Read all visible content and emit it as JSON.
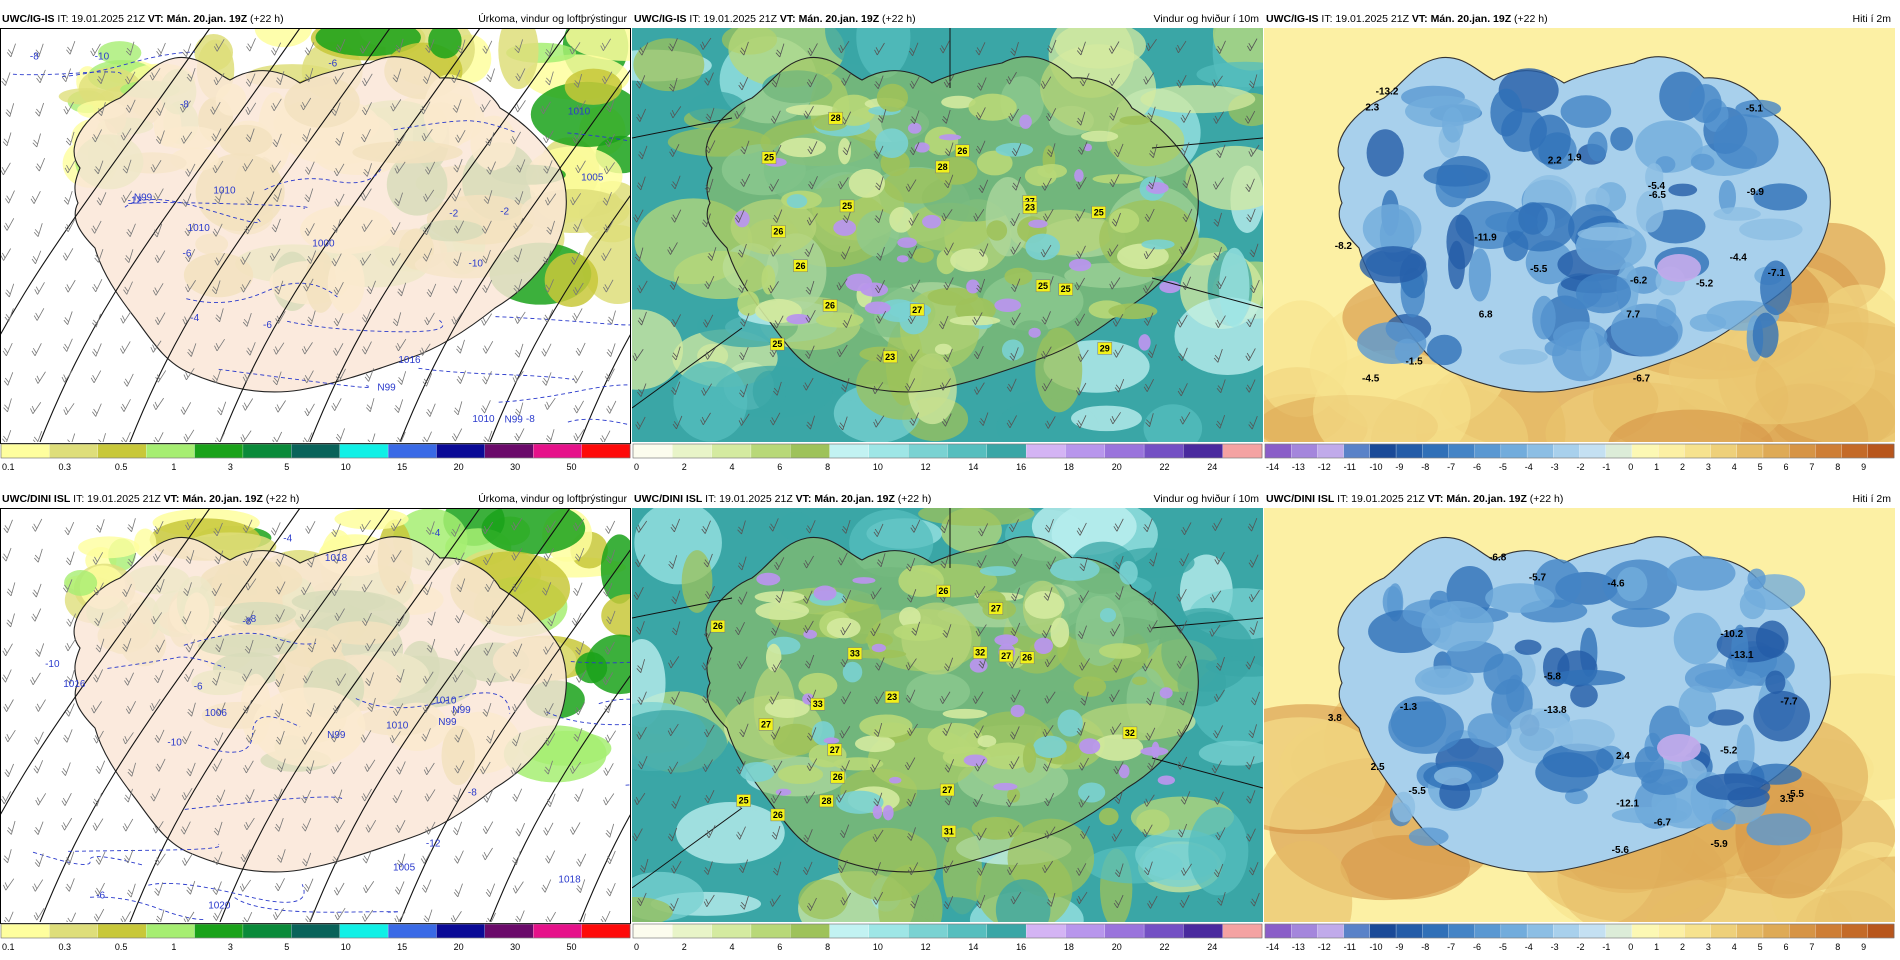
{
  "rows": [
    {
      "model": "UWC/IG-IS",
      "it_label": "IT: 19.01.2025 21Z",
      "vt_label": "VT: Mán. 20.jan. 19Z",
      "lead": "(+22 h)",
      "precip": {
        "title": "Úrkoma, vindur og loftþrýstingur",
        "contour_labels": [
          "-12",
          "-10",
          "-10",
          "-8",
          "-8",
          "-6",
          "-6",
          "-4",
          "-2",
          "-2",
          "-6",
          "-8",
          "1010",
          "1010",
          "1016",
          "1000",
          "1005",
          "1010",
          "1010",
          "N99",
          "N99",
          "N99"
        ]
      },
      "wind": {
        "title": "Vindur og hviður í 10m",
        "gusts": [
          "27",
          "26",
          "25",
          "25",
          "26",
          "28",
          "26",
          "27",
          "25",
          "23",
          "25",
          "29",
          "28",
          "25",
          "26",
          "25",
          "23"
        ]
      },
      "temp": {
        "title": "Hiti í 2m",
        "values": [
          "-1.5",
          "-6.7",
          "-4.5",
          "-6.2",
          "-5.2",
          "-8.2",
          "-5.5",
          "-5.4",
          "-4.4",
          "-5.1",
          "-6.5",
          "-9.9",
          "-11.9",
          "-13.2",
          "2.2",
          "2.3",
          "6.8",
          "-7.1",
          "1.9",
          "7.7"
        ]
      }
    },
    {
      "model": "UWC/DINI ISL",
      "it_label": "IT: 19.01.2025 21Z",
      "vt_label": "VT: Mán. 20.jan. 19Z",
      "lead": "(+22 h)",
      "precip": {
        "title": "Úrkoma, vindur og loftþrýstingur",
        "contour_labels": [
          "-12",
          "-10",
          "-10",
          "-8",
          "-8",
          "-6",
          "-6",
          "-4",
          "-4",
          "-8",
          "1020",
          "1018",
          "1016",
          "1010",
          "1010",
          "1005",
          "1018",
          "1006",
          "N99",
          "N99",
          "N99"
        ]
      },
      "wind": {
        "title": "Vindur og hviður í 10m",
        "gusts": [
          "27",
          "27",
          "31",
          "33",
          "27",
          "28",
          "26",
          "26",
          "32",
          "25",
          "33",
          "32",
          "23",
          "26",
          "27",
          "26",
          "27",
          "26"
        ]
      },
      "temp": {
        "title": "Hiti í 2m",
        "values": [
          "-1.3",
          "-5.9",
          "-5.7",
          "-4.6",
          "2.4",
          "-5.5",
          "-5.8",
          "-7.7",
          "-5.2",
          "2.5",
          "-5.5",
          "-6.8",
          "-10.2",
          "-12.1",
          "-13.1",
          "3.8",
          "-5.6",
          "-6.7",
          "3.5",
          "-13.8"
        ]
      }
    }
  ],
  "colorbars": {
    "precip": {
      "labels": [
        "0.1",
        "0.3",
        "0.5",
        "1",
        "3",
        "5",
        "10",
        "15",
        "20",
        "30",
        "50"
      ],
      "colors": [
        "#fefe9e",
        "#dede7a",
        "#c8c83a",
        "#a6ee72",
        "#1aa21a",
        "#0a8a3a",
        "#09635a",
        "#10f0e6",
        "#3a6ae6",
        "#0a0a96",
        "#6a0a6a",
        "#e6128a",
        "#fe0a0a"
      ]
    },
    "wind": {
      "labels": [
        "0",
        "2",
        "4",
        "6",
        "8",
        "10",
        "12",
        "14",
        "16",
        "18",
        "20",
        "22",
        "24"
      ],
      "colors": [
        "#fcfcee",
        "#e8f4c8",
        "#d4eaa0",
        "#b8d878",
        "#9ec25a",
        "#c2f2f2",
        "#9ee6e6",
        "#7ad2d2",
        "#56bebe",
        "#3aa6a6",
        "#d4b4f4",
        "#b896ec",
        "#9a74dc",
        "#7450c4",
        "#4a2a9e",
        "#f4a2a2"
      ]
    },
    "temp": {
      "labels": [
        "-14",
        "-13",
        "-12",
        "-11",
        "-10",
        "-9",
        "-8",
        "-7",
        "-6",
        "-5",
        "-4",
        "-3",
        "-2",
        "-1",
        "0",
        "1",
        "2",
        "3",
        "4",
        "5",
        "6",
        "7",
        "8",
        "9"
      ],
      "colors": [
        "#8a5ec8",
        "#a486dc",
        "#c0aaea",
        "#5a82c8",
        "#1a4a98",
        "#245ca8",
        "#3070b8",
        "#4484c6",
        "#5a98d2",
        "#72acdc",
        "#8cbee4",
        "#a8d0ec",
        "#c4e0f2",
        "#dcecd8",
        "#fcf8b4",
        "#fcf0a4",
        "#f6e28e",
        "#eed07a",
        "#e6bc66",
        "#deaa56",
        "#d69446",
        "#ce7e36",
        "#c46a28",
        "#b8561c"
      ]
    }
  }
}
